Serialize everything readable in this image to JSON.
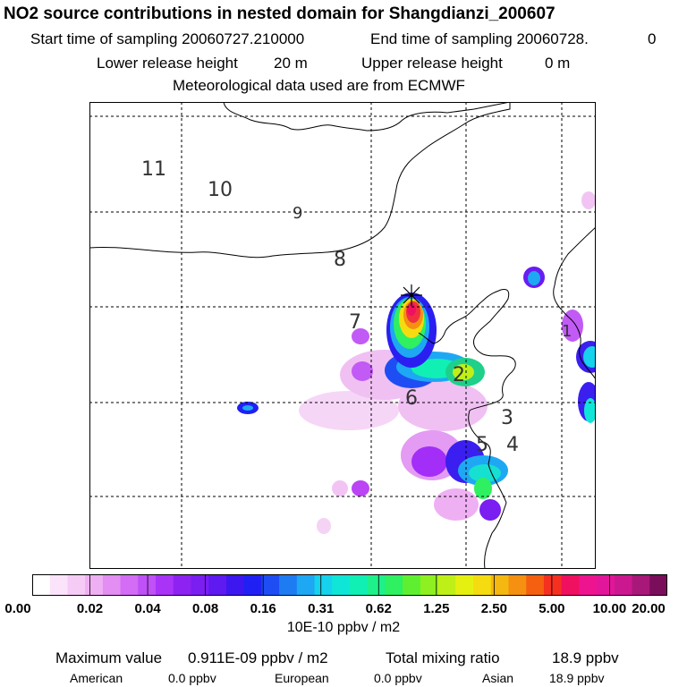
{
  "header": {
    "title": "NO2 source contributions in nested domain for Shangdianzi_200607",
    "start_label": "Start time of sampling 20060727.210000",
    "end_label": "End time of sampling 20060728.",
    "end_suffix": "0",
    "lower_label": "Lower release height",
    "lower_value": "20 m",
    "upper_label": "Upper release height",
    "upper_value": "0 m",
    "met": "Meteorological data used are from ECMWF"
  },
  "map": {
    "region_labels": [
      "11",
      "10",
      "9",
      "8",
      "7",
      "6",
      "2",
      "3",
      "5",
      "4",
      "1"
    ],
    "receptor_marker": "star"
  },
  "colorbar": {
    "ticks": [
      "0.00",
      "0.02",
      "0.04",
      "0.08",
      "0.16",
      "0.31",
      "0.62",
      "1.25",
      "2.50",
      "5.00",
      "10.00",
      "20.00"
    ],
    "colors": [
      "#ffffff",
      "#fbe4fb",
      "#f5ccf5",
      "#efb0f3",
      "#e38ef3",
      "#d46cf5",
      "#c050f7",
      "#a933f7",
      "#8d22f2",
      "#7a1ef2",
      "#5e1af0",
      "#3d17ef",
      "#2020f5",
      "#1e4ef3",
      "#1e7cf3",
      "#1ea8f3",
      "#16d2ec",
      "#10e6d8",
      "#10f0b4",
      "#1ef08a",
      "#2ef060",
      "#5ef030",
      "#8ef020",
      "#bef018",
      "#e6f010",
      "#f5dc10",
      "#f5b810",
      "#f59010",
      "#f56010",
      "#f53020",
      "#f01060",
      "#ee1490",
      "#e2169a",
      "#cc1890",
      "#a81878",
      "#7a0e5a"
    ],
    "units": "10E-10 ppbv / m2"
  },
  "footer": {
    "max_label": "Maximum value",
    "max_value": "0.911E-09 ppbv / m2",
    "total_label": "Total mixing ratio",
    "total_value": "18.9 ppbv",
    "american_label": "American",
    "american_value": "0.0 ppbv",
    "european_label": "European",
    "european_value": "0.0 ppbv",
    "asian_label": "Asian",
    "asian_value": "18.9 ppbv"
  }
}
